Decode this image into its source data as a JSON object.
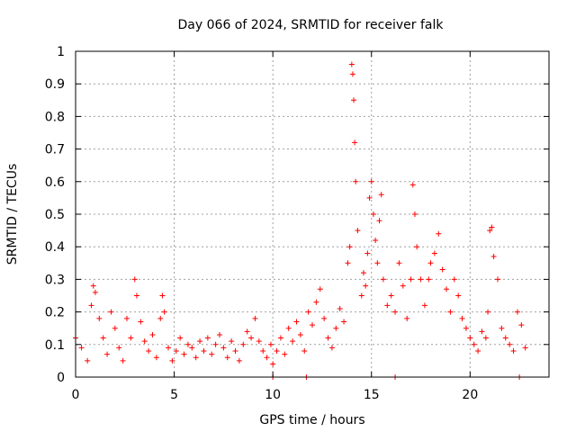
{
  "chart_data": {
    "type": "scatter",
    "title": "Day 066 of 2024, SRMTID for receiver falk",
    "xlabel": "GPS time / hours",
    "ylabel": "SRMTID / TECUs",
    "xlim": [
      0,
      24
    ],
    "ylim": [
      0,
      1
    ],
    "x_ticks": [
      0,
      5,
      10,
      15,
      20
    ],
    "x_tick_labels": [
      "0",
      "5",
      "10",
      "15",
      "20"
    ],
    "y_ticks": [
      0,
      0.1,
      0.2,
      0.3,
      0.4,
      0.5,
      0.6,
      0.7,
      0.8,
      0.9,
      1
    ],
    "y_tick_labels": [
      "0",
      "0.1",
      "0.2",
      "0.3",
      "0.4",
      "0.5",
      "0.6",
      "0.7",
      "0.8",
      "0.9",
      "1"
    ],
    "grid": true,
    "marker": "+",
    "color": "#ff0000",
    "series": [
      {
        "name": "SRMTID",
        "x": [
          0.0,
          0.3,
          0.6,
          0.8,
          0.9,
          1.0,
          1.2,
          1.4,
          1.6,
          1.8,
          2.0,
          2.2,
          2.4,
          2.6,
          2.8,
          3.0,
          3.1,
          3.3,
          3.5,
          3.7,
          3.9,
          4.1,
          4.3,
          4.4,
          4.5,
          4.7,
          4.9,
          5.1,
          5.3,
          5.5,
          5.7,
          5.9,
          6.1,
          6.3,
          6.5,
          6.7,
          6.9,
          7.1,
          7.3,
          7.5,
          7.7,
          7.9,
          8.1,
          8.3,
          8.5,
          8.7,
          8.9,
          9.1,
          9.3,
          9.5,
          9.7,
          9.9,
          10.0,
          10.2,
          10.4,
          10.6,
          10.8,
          11.0,
          11.2,
          11.4,
          11.6,
          11.8,
          12.0,
          12.2,
          12.4,
          12.6,
          12.8,
          13.0,
          13.2,
          13.4,
          13.6,
          13.8,
          13.9,
          14.0,
          14.05,
          14.1,
          14.15,
          14.2,
          14.3,
          14.5,
          14.6,
          14.7,
          14.8,
          14.9,
          15.0,
          15.1,
          15.2,
          15.3,
          15.4,
          15.5,
          15.6,
          15.8,
          16.0,
          16.2,
          16.4,
          16.6,
          16.8,
          17.0,
          17.1,
          17.2,
          17.3,
          17.5,
          17.7,
          17.9,
          18.0,
          18.2,
          18.4,
          18.6,
          18.8,
          19.0,
          19.2,
          19.4,
          19.6,
          19.8,
          20.0,
          20.2,
          20.4,
          20.6,
          20.8,
          20.9,
          21.0,
          21.1,
          21.2,
          21.4,
          21.6,
          21.8,
          22.0,
          22.2,
          22.4,
          22.6,
          22.8,
          16.2,
          22.5,
          11.7,
          10.0
        ],
        "y": [
          0.12,
          0.09,
          0.05,
          0.22,
          0.28,
          0.26,
          0.18,
          0.12,
          0.07,
          0.2,
          0.15,
          0.09,
          0.05,
          0.18,
          0.12,
          0.3,
          0.25,
          0.17,
          0.11,
          0.08,
          0.13,
          0.06,
          0.18,
          0.25,
          0.2,
          0.09,
          0.05,
          0.08,
          0.12,
          0.07,
          0.1,
          0.09,
          0.06,
          0.11,
          0.08,
          0.12,
          0.07,
          0.1,
          0.13,
          0.09,
          0.06,
          0.11,
          0.08,
          0.05,
          0.1,
          0.14,
          0.12,
          0.18,
          0.11,
          0.08,
          0.06,
          0.1,
          0.04,
          0.08,
          0.12,
          0.07,
          0.15,
          0.11,
          0.17,
          0.13,
          0.08,
          0.2,
          0.16,
          0.23,
          0.27,
          0.18,
          0.12,
          0.09,
          0.15,
          0.21,
          0.17,
          0.35,
          0.4,
          0.96,
          0.93,
          0.85,
          0.72,
          0.6,
          0.45,
          0.25,
          0.32,
          0.28,
          0.38,
          0.55,
          0.6,
          0.5,
          0.42,
          0.35,
          0.48,
          0.56,
          0.3,
          0.22,
          0.25,
          0.2,
          0.35,
          0.28,
          0.18,
          0.3,
          0.59,
          0.5,
          0.4,
          0.3,
          0.22,
          0.3,
          0.35,
          0.38,
          0.44,
          0.33,
          0.27,
          0.2,
          0.3,
          0.25,
          0.18,
          0.15,
          0.12,
          0.1,
          0.08,
          0.14,
          0.12,
          0.2,
          0.45,
          0.46,
          0.37,
          0.3,
          0.15,
          0.12,
          0.1,
          0.08,
          0.2,
          0.16,
          0.09,
          0.0,
          0.0,
          0.0,
          0.0
        ]
      }
    ]
  }
}
